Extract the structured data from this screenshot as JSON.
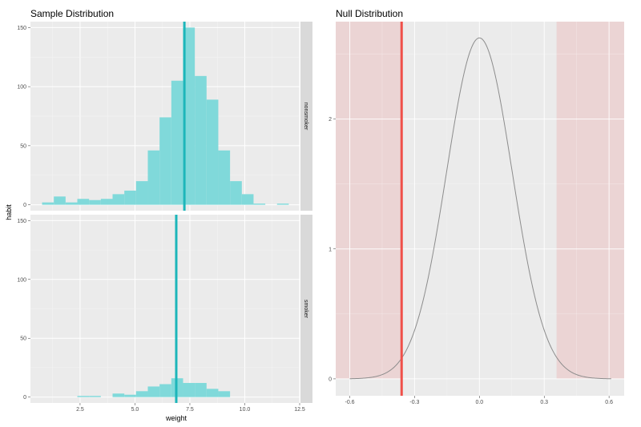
{
  "chart_data": [
    {
      "type": "bar",
      "subtype": "faceted-histogram",
      "title": "Sample Distribution",
      "xlabel": "weight",
      "ylabel": "habit",
      "xlim": [
        0.24,
        12.5
      ],
      "x_ticks": [
        "2.5",
        "5.0",
        "7.5",
        "10.0",
        "12.5"
      ],
      "x_tick_values": [
        2.5,
        5.0,
        7.5,
        10.0,
        12.5
      ],
      "y_ticks": [
        "0",
        "50",
        "100",
        "150"
      ],
      "y_tick_values": [
        0,
        50,
        100,
        150
      ],
      "ylim": [
        -5,
        155
      ],
      "grid": true,
      "bin_start": 0.77,
      "binwidth": 0.535,
      "fill_color": "#80d9da",
      "mean_line_color": "#1db6ba",
      "facets": [
        {
          "label": "nonsmoker",
          "counts": [
            2,
            7,
            2,
            5,
            4,
            5,
            9,
            12,
            20,
            46,
            74,
            105,
            150,
            109,
            89,
            46,
            20,
            9,
            1,
            0,
            1
          ],
          "mean": 7.25
        },
        {
          "label": "smoker",
          "counts": [
            0,
            0,
            0,
            1,
            1,
            0,
            3,
            2,
            5,
            9,
            11,
            16,
            12,
            12,
            7,
            5,
            0,
            0,
            0,
            0,
            0
          ],
          "mean": 6.88
        }
      ]
    },
    {
      "type": "line",
      "subtype": "density-curve",
      "title": "Null Distribution",
      "xlabel": "",
      "ylabel": "",
      "xlim": [
        -0.665,
        0.67
      ],
      "ylim": [
        -0.13,
        2.75
      ],
      "x_ticks": [
        "-0.6",
        "-0.3",
        "0.0",
        "0.3",
        "0.6"
      ],
      "x_tick_values": [
        -0.6,
        -0.3,
        0.0,
        0.3,
        0.6
      ],
      "y_ticks": [
        "0",
        "1",
        "2"
      ],
      "y_tick_values": [
        0,
        1,
        2
      ],
      "grid": true,
      "curve": {
        "distribution": "normal",
        "mean": 0,
        "sd": 0.152,
        "x_range": [
          -0.6,
          0.61
        ],
        "peak": 2.62,
        "color": "#8c8c8c"
      },
      "observed_stat": -0.36,
      "observed_color": "#f0504a",
      "shaded_regions": [
        [
          -0.665,
          -0.36
        ],
        [
          0.357,
          0.67
        ]
      ],
      "shade_color": "#ebd4d4"
    }
  ]
}
